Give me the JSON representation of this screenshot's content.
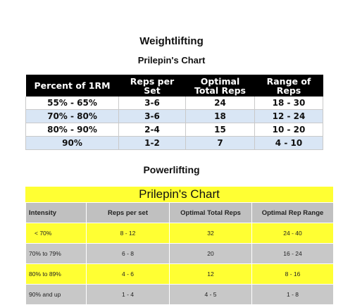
{
  "weightlifting": {
    "heading": "Weightlifting",
    "subheading": "Prilepin's Chart",
    "headers": [
      "Percent of 1RM",
      "Reps per Set",
      "Optimal Total Reps",
      "Range of Reps"
    ],
    "rows": [
      [
        "55% - 65%",
        "3-6",
        "24",
        "18 - 30"
      ],
      [
        "70% - 80%",
        "3-6",
        "18",
        "12 - 24"
      ],
      [
        "80% - 90%",
        "2-4",
        "15",
        "10 - 20"
      ],
      [
        "90%",
        "1-2",
        "7",
        "4 - 10"
      ]
    ],
    "header_color": "#000000",
    "stripe_color": "#d9e6f5"
  },
  "powerlifting": {
    "heading": "Powerlifting",
    "title": "Prilepin's Chart",
    "headers": [
      "Intensity",
      "Reps per set",
      "Optimal Total Reps",
      "Optimal Rep Range"
    ],
    "rows": [
      [
        "< 70%",
        "8 - 12",
        "32",
        "24 - 40"
      ],
      [
        "70% to 79%",
        "6 - 8",
        "20",
        "16 - 24"
      ],
      [
        "80% to 89%",
        "4 - 6",
        "12",
        "8 - 16"
      ],
      [
        "90% and up",
        "1 - 4",
        "4 - 5",
        "1 - 8"
      ]
    ],
    "highlight_color": "#ffff33",
    "grey_color": "#c8c8c8"
  }
}
